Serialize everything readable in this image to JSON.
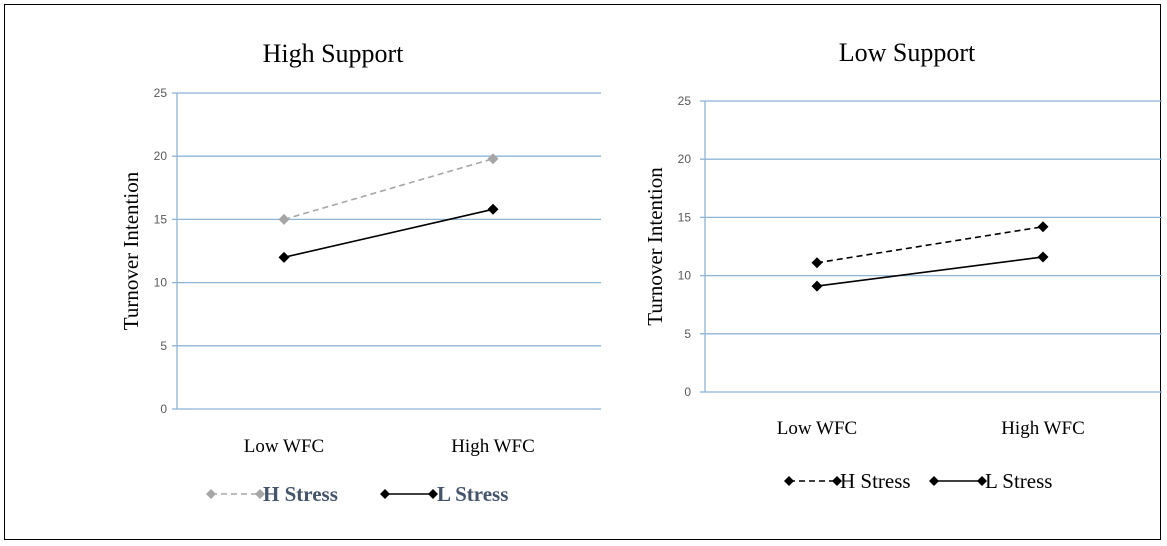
{
  "chart_data": [
    {
      "type": "line",
      "title": "High Support",
      "xlabel": "",
      "ylabel": "Turnover Intention",
      "categories": [
        "Low WFC",
        "High WFC"
      ],
      "ylim": [
        0,
        25
      ],
      "yticks": [
        "0",
        "5",
        "10",
        "15",
        "20",
        "25"
      ],
      "grid": true,
      "legend_position": "bottom",
      "series": [
        {
          "name": "H Stress",
          "values": [
            15,
            19.8
          ],
          "color": "#a6a6a6",
          "dash": "dashed"
        },
        {
          "name": "L Stress",
          "values": [
            12,
            15.8
          ],
          "color": "#000000",
          "dash": "solid"
        }
      ]
    },
    {
      "type": "line",
      "title": "Low Support",
      "xlabel": "",
      "ylabel": "Turnover Intention",
      "categories": [
        "Low WFC",
        "High WFC"
      ],
      "ylim": [
        0,
        25
      ],
      "yticks": [
        "0",
        "5",
        "10",
        "15",
        "20",
        "25"
      ],
      "grid": true,
      "legend_position": "bottom",
      "series": [
        {
          "name": "H Stress",
          "values": [
            11.1,
            14.2
          ],
          "color": "#000000",
          "dash": "dashed"
        },
        {
          "name": "L Stress",
          "values": [
            9.1,
            11.6
          ],
          "color": "#000000",
          "dash": "solid"
        }
      ]
    }
  ],
  "colors": {
    "gridline": "#8eb4d6",
    "axis": "#8eb4d6",
    "legend_bold_text": "#44546a"
  }
}
